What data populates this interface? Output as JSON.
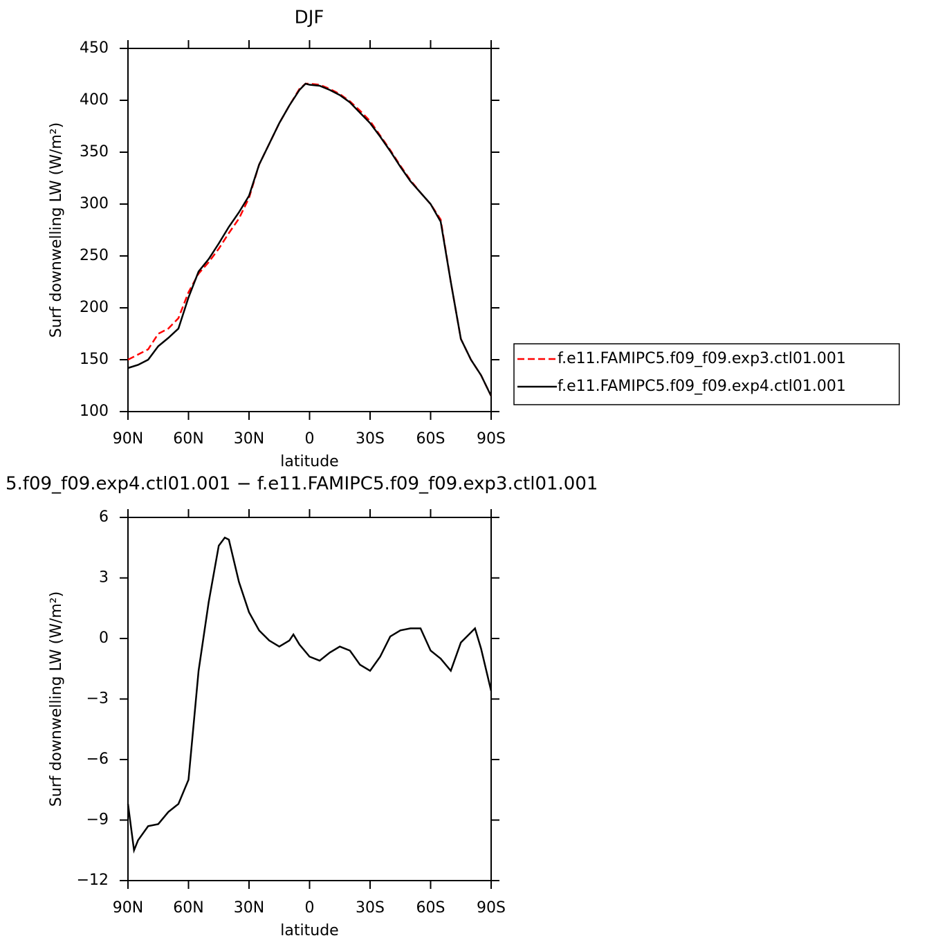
{
  "chart_data": [
    {
      "type": "line",
      "title": "DJF",
      "x_label": "latitude",
      "y_label": "Surf downwelling LW (W/m²)",
      "x": [
        90,
        85,
        80,
        75,
        70,
        65,
        60,
        55,
        50,
        45,
        40,
        35,
        30,
        25,
        20,
        15,
        10,
        5,
        2,
        0,
        -5,
        -10,
        -15,
        -20,
        -25,
        -30,
        -35,
        -40,
        -45,
        -50,
        -55,
        -60,
        -65,
        -70,
        -75,
        -80,
        -85,
        -90
      ],
      "series": [
        {
          "name": "f.e11.FAMIPC5.f09_f09.exp3.ctl01.001",
          "color": "#ff0000",
          "dash": true,
          "values": [
            150,
            155,
            160,
            175,
            180,
            190,
            215,
            233,
            244,
            257,
            272,
            286,
            306,
            338,
            358,
            378,
            395,
            411,
            416,
            416,
            415,
            411,
            406,
            399,
            390,
            380,
            366,
            352,
            337,
            323,
            311,
            300,
            285,
            225,
            170,
            150,
            135,
            115
          ]
        },
        {
          "name": "f.e11.FAMIPC5.f09_f09.exp4.ctl01.001",
          "color": "#000000",
          "dash": false,
          "values": [
            142,
            145,
            150,
            163,
            171,
            180,
            210,
            235,
            247,
            262,
            278,
            292,
            308,
            338,
            358,
            378,
            395,
            410,
            416,
            415,
            414,
            410,
            405,
            398,
            388,
            378,
            365,
            351,
            336,
            322,
            311,
            300,
            283,
            225,
            170,
            150,
            135,
            115
          ]
        }
      ],
      "xlim": [
        90,
        -90
      ],
      "xticks": [
        {
          "value": 90,
          "label": "90N"
        },
        {
          "value": 60,
          "label": "60N"
        },
        {
          "value": 30,
          "label": "30N"
        },
        0,
        {
          "value": -30,
          "label": "30S"
        },
        {
          "value": -60,
          "label": "60S"
        },
        {
          "value": -90,
          "label": "90S"
        }
      ],
      "ylim": [
        100,
        450
      ],
      "yticks": [
        100,
        150,
        200,
        250,
        300,
        350,
        400,
        450
      ],
      "legend": "right"
    },
    {
      "type": "line",
      "title": "5.f09_f09.exp4.ctl01.001 − f.e11.FAMIPC5.f09_f09.exp3.ctl01.001",
      "x_label": "latitude",
      "y_label": "Surf downwelling LW (W/m²)",
      "x": [
        90,
        87,
        85,
        80,
        75,
        70,
        65,
        60,
        55,
        50,
        45,
        42,
        40,
        35,
        30,
        25,
        20,
        15,
        10,
        8,
        5,
        0,
        -5,
        -10,
        -15,
        -20,
        -25,
        -30,
        -35,
        -40,
        -45,
        -50,
        -55,
        -60,
        -65,
        -70,
        -75,
        -80,
        -82,
        -85,
        -90
      ],
      "color": "#000000",
      "values": [
        -8.2,
        -10.5,
        -10.0,
        -9.3,
        -9.2,
        -8.6,
        -8.2,
        -7.0,
        -1.6,
        1.8,
        4.6,
        5.0,
        4.9,
        2.8,
        1.3,
        0.4,
        -0.1,
        -0.4,
        -0.1,
        0.2,
        -0.3,
        -0.9,
        -1.1,
        -0.7,
        -0.4,
        -0.6,
        -1.3,
        -1.6,
        -0.9,
        0.1,
        0.4,
        0.5,
        0.5,
        -0.6,
        -1.0,
        -1.6,
        -0.2,
        0.3,
        0.5,
        -0.5,
        -2.6
      ],
      "xlim": [
        90,
        -90
      ],
      "xticks": [
        {
          "value": 90,
          "label": "90N"
        },
        {
          "value": 60,
          "label": "60N"
        },
        {
          "value": 30,
          "label": "30N"
        },
        0,
        {
          "value": -30,
          "label": "30S"
        },
        {
          "value": -60,
          "label": "60S"
        },
        {
          "value": -90,
          "label": "90S"
        }
      ],
      "ylim": [
        -12,
        6
      ],
      "yticks": [
        {
          "value": -12,
          "label": "−12"
        },
        {
          "value": -9,
          "label": "−9"
        },
        {
          "value": -6,
          "label": "−6"
        },
        {
          "value": -3,
          "label": "−3"
        },
        0,
        3,
        6
      ]
    }
  ]
}
